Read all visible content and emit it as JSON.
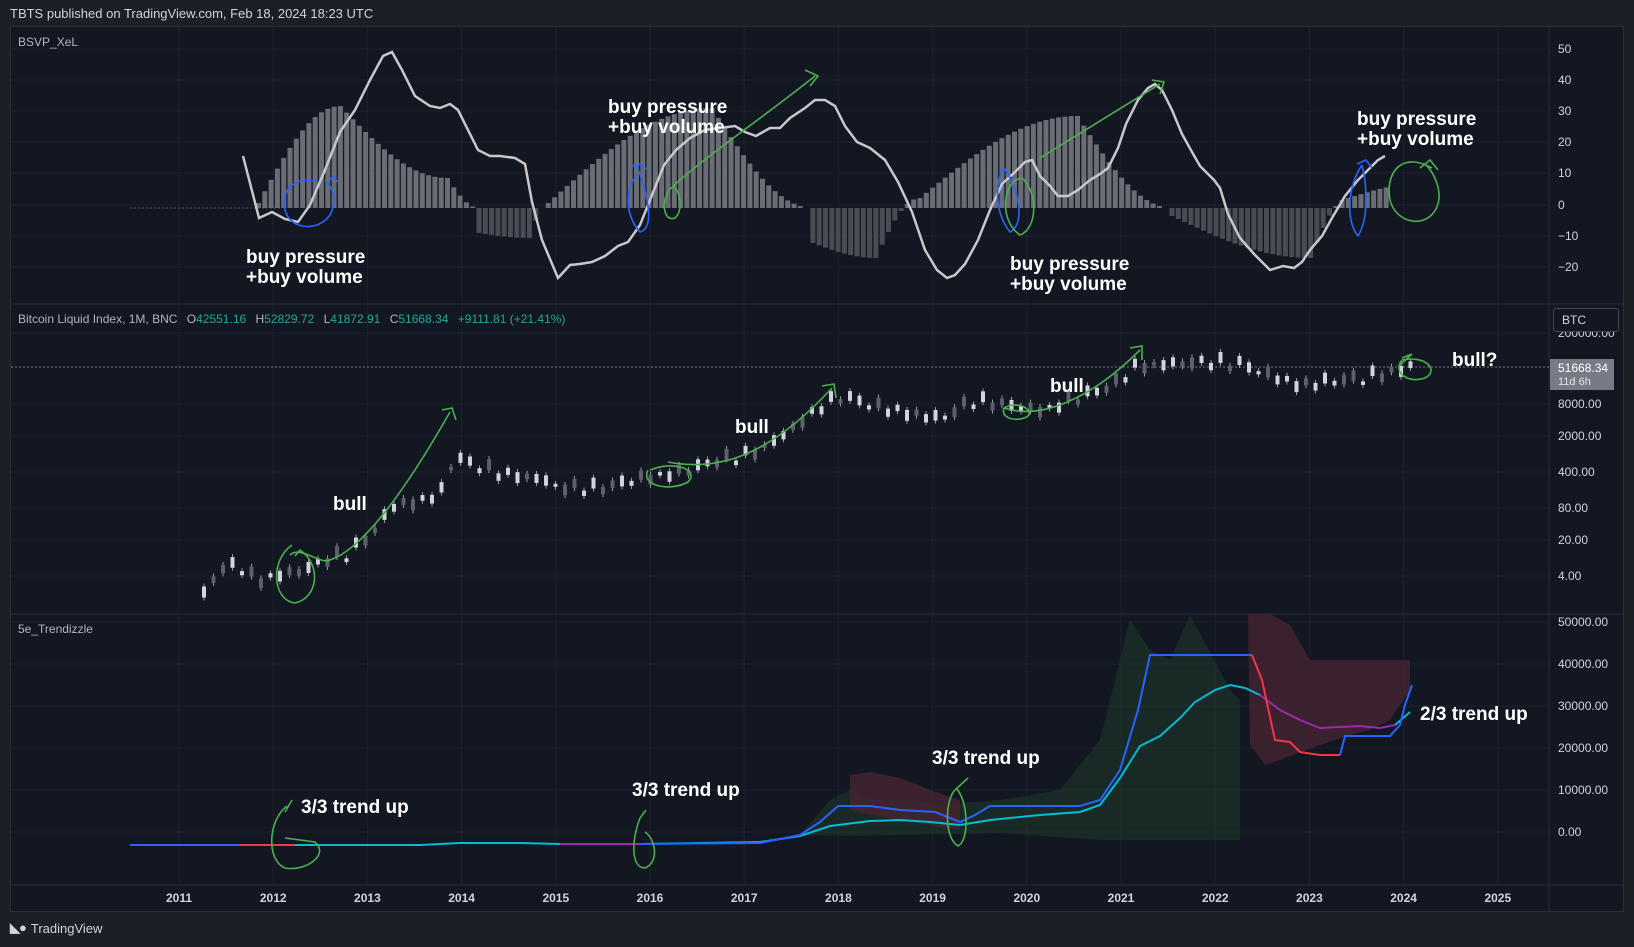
{
  "header": {
    "published": "TBTS published on TradingView.com, Feb 18, 2024 18:23 UTC"
  },
  "footer": {
    "brand": "TradingView"
  },
  "colors": {
    "background": "#131722",
    "green": "#4caf50",
    "blue": "#2962ff",
    "cyan": "#00bcd4",
    "red": "#f23645",
    "purple": "#9c27b0",
    "gray_line": "#c8c8cc",
    "histogram_bar": "#6b6d74"
  },
  "panes": {
    "oscillator": {
      "title": "BSVP_XeL",
      "y_ticks": [
        "50",
        "40",
        "30",
        "20",
        "10",
        "0",
        "−10",
        "−20"
      ],
      "annotations": [
        "buy pressure",
        "+buy volume",
        "buy pressure",
        "+buy volume",
        "buy pressure",
        "+buy volume",
        "buy pressure",
        "+buy volume"
      ]
    },
    "price": {
      "title": "Bitcoin Liquid Index, 1M, BNC",
      "open_label": "O",
      "open": "42551.16",
      "high_label": "H",
      "high": "52829.72",
      "low_label": "L",
      "low": "41872.91",
      "close_label": "C",
      "close": "51668.34",
      "change": "+9111.81 (+21.41%)",
      "symbol_button": "BTC",
      "last_price": "51668.34",
      "countdown": "11d 6h",
      "y_ticks": [
        "200000.00",
        "8000.00",
        "2000.00",
        "400.00",
        "80.00",
        "20.00",
        "4.00"
      ],
      "annotations": [
        "bull",
        "bull",
        "bull",
        "bull?"
      ]
    },
    "trend": {
      "title": "5e_Trendizzle",
      "y_ticks": [
        "50000.00",
        "40000.00",
        "30000.00",
        "20000.00",
        "10000.00",
        "0.00"
      ],
      "annotations": [
        "3/3 trend up",
        "3/3 trend up",
        "3/3 trend up",
        "2/3 trend up"
      ]
    }
  },
  "x_axis": {
    "years": [
      "2011",
      "2012",
      "2013",
      "2014",
      "2015",
      "2016",
      "2017",
      "2018",
      "2019",
      "2020",
      "2021",
      "2022",
      "2023",
      "2024",
      "2025"
    ]
  }
}
